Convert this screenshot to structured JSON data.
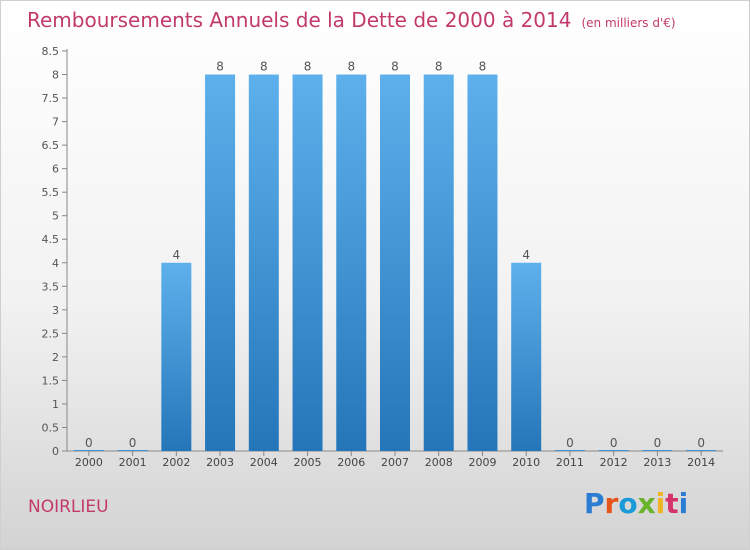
{
  "header": {
    "title": "Remboursements Annuels de la Dette de 2000 à 2014",
    "unit": "(en milliers d'€)"
  },
  "footer": {
    "town": "NOIRLIEU",
    "brand_letters": [
      "P",
      "r",
      "o",
      "x",
      "i",
      "t",
      "i"
    ],
    "brand_colors": [
      "#2b7cd3",
      "#e6541b",
      "#1a9ad6",
      "#6ab42d",
      "#f0b323",
      "#d6336c",
      "#2b7cd3"
    ]
  },
  "chart_data": {
    "type": "bar",
    "title": "Remboursements Annuels de la Dette de 2000 à 2014",
    "categories": [
      "2000",
      "2001",
      "2002",
      "2003",
      "2004",
      "2005",
      "2006",
      "2007",
      "2008",
      "2009",
      "2010",
      "2011",
      "2012",
      "2013",
      "2014"
    ],
    "values": [
      0,
      0,
      4,
      8,
      8,
      8,
      8,
      8,
      8,
      8,
      4,
      0,
      0,
      0,
      0
    ],
    "data_labels": [
      "0",
      "0",
      "4",
      "8",
      "8",
      "8",
      "8",
      "8",
      "8",
      "8",
      "4",
      "0",
      "0",
      "0",
      "0"
    ],
    "ylim": [
      0,
      8.5
    ],
    "yticks": [
      0,
      0.5,
      1,
      1.5,
      2,
      2.5,
      3,
      3.5,
      4,
      4.5,
      5,
      5.5,
      6,
      6.5,
      7,
      7.5,
      8,
      8.5
    ],
    "ytick_labels": [
      "0",
      "0.5",
      "1",
      "1.5",
      "2",
      "2.5",
      "3",
      "3.5",
      "4",
      "4.5",
      "5",
      "5.5",
      "6",
      "6.5",
      "7",
      "7.5",
      "8",
      "8.5"
    ],
    "grid": false,
    "bar_color_top": "#5eb0ec",
    "bar_color_bottom": "#2476b9",
    "axis_color": "#888888"
  }
}
